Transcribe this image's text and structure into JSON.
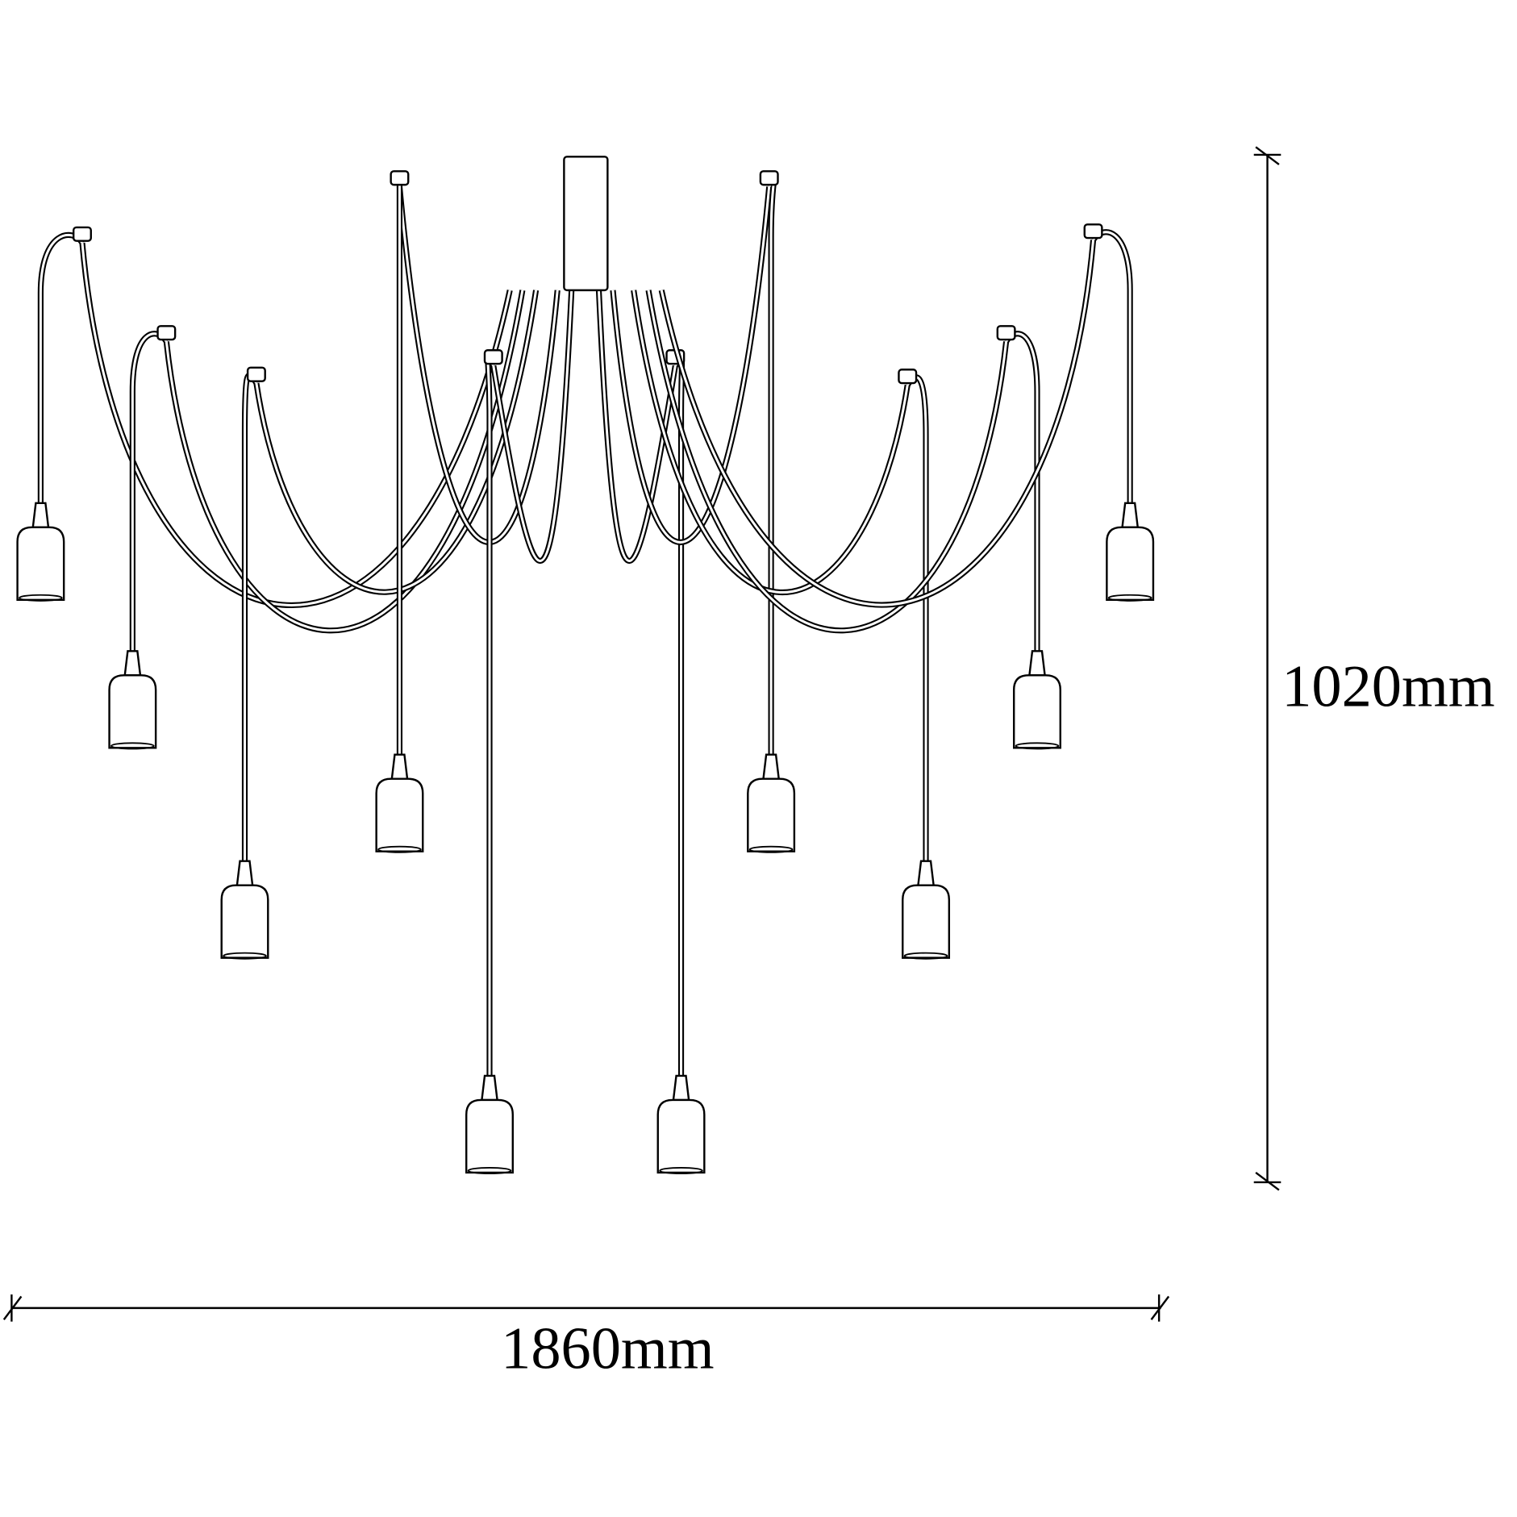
{
  "dimensions": {
    "width": "1860mm",
    "height": "1020mm"
  }
}
